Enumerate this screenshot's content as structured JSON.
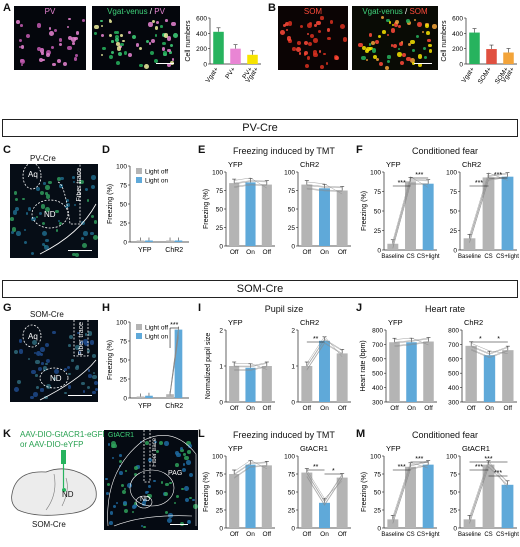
{
  "panels": {
    "A": {
      "letter": "A",
      "img1_label": "PV",
      "img2_label_a": "Vgat-venus",
      "img2_label_sep": " / ",
      "img2_label_b": "PV"
    },
    "B": {
      "letter": "B",
      "img1_label": "SOM",
      "img2_label_a": "Vgat-venus",
      "img2_label_sep": " / ",
      "img2_label_b": "SOM"
    },
    "C": {
      "letter": "C",
      "title": "PV-Cre",
      "aq": "Aq",
      "nd": "ND",
      "fiber": "Fiber trace"
    },
    "D": {
      "letter": "D"
    },
    "E": {
      "letter": "E",
      "title": "Freezing induced by TMT"
    },
    "F": {
      "letter": "F",
      "title": "Conditioned fear"
    },
    "G": {
      "letter": "G",
      "title": "SOM-Cre",
      "aq": "Aq",
      "nd": "ND",
      "fiber": "Fiber trace"
    },
    "H": {
      "letter": "H"
    },
    "I": {
      "letter": "I",
      "title": "Pupil size"
    },
    "J": {
      "letter": "J",
      "title": "Heart rate"
    },
    "K": {
      "letter": "K",
      "virus1": "AAV-DIO-GtACR1-eGFP",
      "virus2": "or AAV-DIO-eYFP",
      "mouse": "SOM-Cre",
      "nd": "ND",
      "brain_nd": "ND",
      "pag": "PAG",
      "gtacr": "GtACR1",
      "fiber": "Fiber trace"
    },
    "L": {
      "letter": "L",
      "title": "Freezing induced by TMT"
    },
    "M": {
      "letter": "M",
      "title": "Conditioned  fear"
    }
  },
  "bands": {
    "pv": "PV-Cre",
    "som": "SOM-Cre"
  },
  "colors": {
    "grey": "#b4b4b4",
    "blue": "#5fa9d9",
    "green": "#27b35e",
    "pink": "#e985d4",
    "yellow": "#f7e400",
    "red": "#e05040",
    "orange": "#f3a43a"
  },
  "chart_data": [
    {
      "id": "A",
      "type": "bar",
      "ylabel": "Cell numbers",
      "categories": [
        "Vgat+",
        "PV+",
        "PV+ Vgat+"
      ],
      "category_lines": [
        [
          "Vgat+"
        ],
        [
          "PV+"
        ],
        [
          "PV+",
          "Vgat+"
        ]
      ],
      "values": [
        420,
        200,
        120
      ],
      "colors": [
        "#27b35e",
        "#e985d4",
        "#f7e400"
      ],
      "ylim": [
        0,
        600
      ],
      "yticks": [
        "0",
        "200",
        "400",
        "600"
      ]
    },
    {
      "id": "B",
      "type": "bar",
      "ylabel": "Cell numbers",
      "categories": [
        "Vgat+",
        "SOM+",
        "SOM+ Vgat+"
      ],
      "category_lines": [
        [
          "Vgat+"
        ],
        [
          "SOM+"
        ],
        [
          "SOM+",
          "Vgat+"
        ]
      ],
      "values": [
        410,
        195,
        150
      ],
      "colors": [
        "#27b35e",
        "#e05040",
        "#f3a43a"
      ],
      "ylim": [
        0,
        600
      ],
      "yticks": [
        "0",
        "200",
        "400",
        "600"
      ]
    },
    {
      "id": "D",
      "type": "bar",
      "ylabel": "Freezing (%)",
      "groups": [
        "YFP",
        "ChR2"
      ],
      "series": [
        {
          "name": "Light off",
          "values": [
            2,
            2
          ]
        },
        {
          "name": "Light on",
          "values": [
            2,
            2
          ]
        }
      ],
      "ylim": [
        0,
        100
      ],
      "yticks": [
        "0",
        "25",
        "50",
        "75",
        "100"
      ]
    },
    {
      "id": "E1",
      "type": "bar",
      "subtitle": "YFP",
      "ylabel": "Freezing (%)",
      "categories": [
        "Off",
        "On",
        "Off"
      ],
      "values": [
        85,
        86,
        83
      ],
      "ylim": [
        0,
        100
      ],
      "yticks": [
        "0",
        "25",
        "50",
        "75",
        "100"
      ]
    },
    {
      "id": "E2",
      "type": "bar",
      "subtitle": "ChR2",
      "ylabel": "Freezing (%)",
      "categories": [
        "Off",
        "On",
        "Off"
      ],
      "values": [
        83,
        78,
        75
      ],
      "ylim": [
        0,
        100
      ],
      "yticks": [
        "0",
        "25",
        "50",
        "75",
        "100"
      ]
    },
    {
      "id": "F1",
      "type": "bar",
      "subtitle": "YFP",
      "ylabel": "Freezing (%)",
      "categories": [
        "Baseline",
        "CS",
        "CS+light"
      ],
      "values": [
        8,
        88,
        85
      ],
      "sig": [
        "***",
        "***"
      ],
      "ylim": [
        0,
        100
      ],
      "yticks": [
        "0",
        "25",
        "50",
        "75",
        "100"
      ]
    },
    {
      "id": "F2",
      "type": "bar",
      "subtitle": "ChR2",
      "ylabel": "Freezing (%)",
      "categories": [
        "Baseline",
        "CS",
        "CS+light"
      ],
      "values": [
        15,
        93,
        94
      ],
      "sig": [
        "***",
        "***"
      ],
      "ylim": [
        0,
        100
      ],
      "yticks": [
        "0",
        "25",
        "50",
        "75",
        "100"
      ]
    },
    {
      "id": "H",
      "type": "bar",
      "ylabel": "Freezing (%)",
      "groups": [
        "YFP",
        "ChR2"
      ],
      "series": [
        {
          "name": "Light off",
          "values": [
            2,
            5
          ]
        },
        {
          "name": "Light on",
          "values": [
            3,
            90
          ]
        }
      ],
      "sig": [
        "***"
      ],
      "ylim": [
        0,
        100
      ],
      "yticks": [
        "0",
        "25",
        "50",
        "75",
        "100"
      ]
    },
    {
      "id": "I1",
      "type": "bar",
      "subtitle": "YFP",
      "ylabel": "Normalized pupil size",
      "categories": [
        "Off",
        "On",
        "Off"
      ],
      "values": [
        1.0,
        0.95,
        1.0
      ],
      "ylim": [
        0,
        2
      ],
      "yticks": [
        "0",
        "1",
        "2"
      ]
    },
    {
      "id": "I2",
      "type": "bar",
      "subtitle": "ChR2",
      "ylabel": "Normalized pupil size",
      "categories": [
        "Off",
        "On",
        "Off"
      ],
      "values": [
        1.0,
        1.7,
        1.35
      ],
      "sig": [
        "**"
      ],
      "ylim": [
        0,
        2
      ],
      "yticks": [
        "0",
        "1",
        "2"
      ]
    },
    {
      "id": "J1",
      "type": "bar",
      "subtitle": "YFP",
      "ylabel": "Heart rate (bpm)",
      "categories": [
        "Off",
        "On",
        "Off"
      ],
      "values": [
        715,
        715,
        720
      ],
      "ylim": [
        300,
        800
      ],
      "yticks": [
        "300",
        "400",
        "500",
        "600",
        "700",
        "800"
      ]
    },
    {
      "id": "J2",
      "type": "bar",
      "subtitle": "ChR2",
      "ylabel": "Heart rate (bpm)",
      "categories": [
        "Off",
        "On",
        "Off"
      ],
      "values": [
        690,
        625,
        660
      ],
      "sig": [
        "*",
        "*"
      ],
      "ylim": [
        300,
        800
      ],
      "yticks": [
        "300",
        "400",
        "500",
        "600",
        "700",
        "800"
      ]
    },
    {
      "id": "L1",
      "type": "bar",
      "subtitle": "YFP",
      "ylabel": "Freezing (%)",
      "categories": [
        "Off",
        "On",
        "Off"
      ],
      "values": [
        75,
        88,
        87
      ],
      "ylim": [
        0,
        100
      ],
      "yticks": [
        "0",
        "25",
        "50",
        "75",
        "100"
      ]
    },
    {
      "id": "L2",
      "type": "bar",
      "subtitle": "GtACR1",
      "ylabel": "Freezing (%)",
      "categories": [
        "Off",
        "On",
        "Off"
      ],
      "values": [
        77,
        35,
        70
      ],
      "sig": [
        "**",
        "*"
      ],
      "ylim": [
        0,
        100
      ],
      "yticks": [
        "0",
        "25",
        "50",
        "75",
        "100"
      ]
    },
    {
      "id": "M1",
      "type": "bar",
      "subtitle": "YFP",
      "ylabel": "Freezing (%)",
      "categories": [
        "Baseline",
        "CS",
        "CS+light"
      ],
      "values": [
        12,
        85,
        88
      ],
      "sig": [
        "***",
        "***"
      ],
      "ylim": [
        0,
        100
      ],
      "yticks": [
        "0",
        "25",
        "50",
        "75",
        "100"
      ]
    },
    {
      "id": "M2",
      "type": "bar",
      "subtitle": "GtACR1",
      "ylabel": "Freezing (%)",
      "categories": [
        "Baseline",
        "CS",
        "CS+light"
      ],
      "values": [
        12,
        88,
        60
      ],
      "sig": [
        "***",
        "***",
        "***"
      ],
      "ylim": [
        0,
        100
      ],
      "yticks": [
        "0",
        "25",
        "50",
        "75",
        "100"
      ]
    }
  ]
}
